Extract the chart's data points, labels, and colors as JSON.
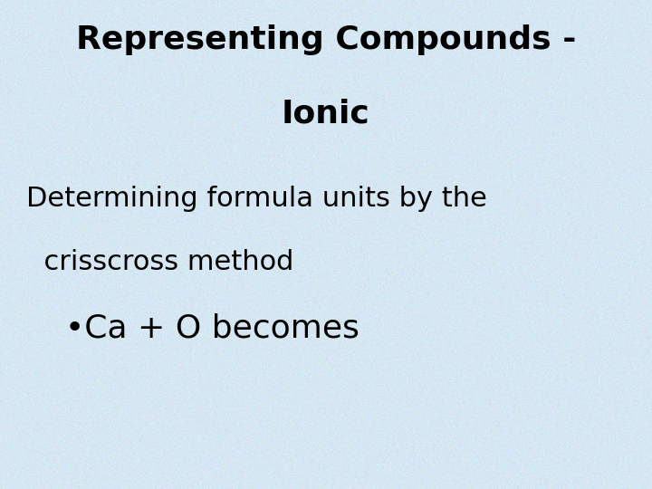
{
  "title_line1": "Representing Compounds -",
  "title_line2": "Ionic",
  "body_line1": "Determining formula units by the",
  "body_line2": "  crisscross method",
  "body_line3": "•Ca + O becomes",
  "bg_base": [
    0.839,
    0.906,
    0.953
  ],
  "bg_noise_std": 0.018,
  "title_color": "#000000",
  "body_color": "#000000",
  "title_fontsize": 26,
  "body_fontsize": 22,
  "bullet_fontsize": 26,
  "fig_width": 7.2,
  "fig_height": 5.4,
  "dpi": 100
}
